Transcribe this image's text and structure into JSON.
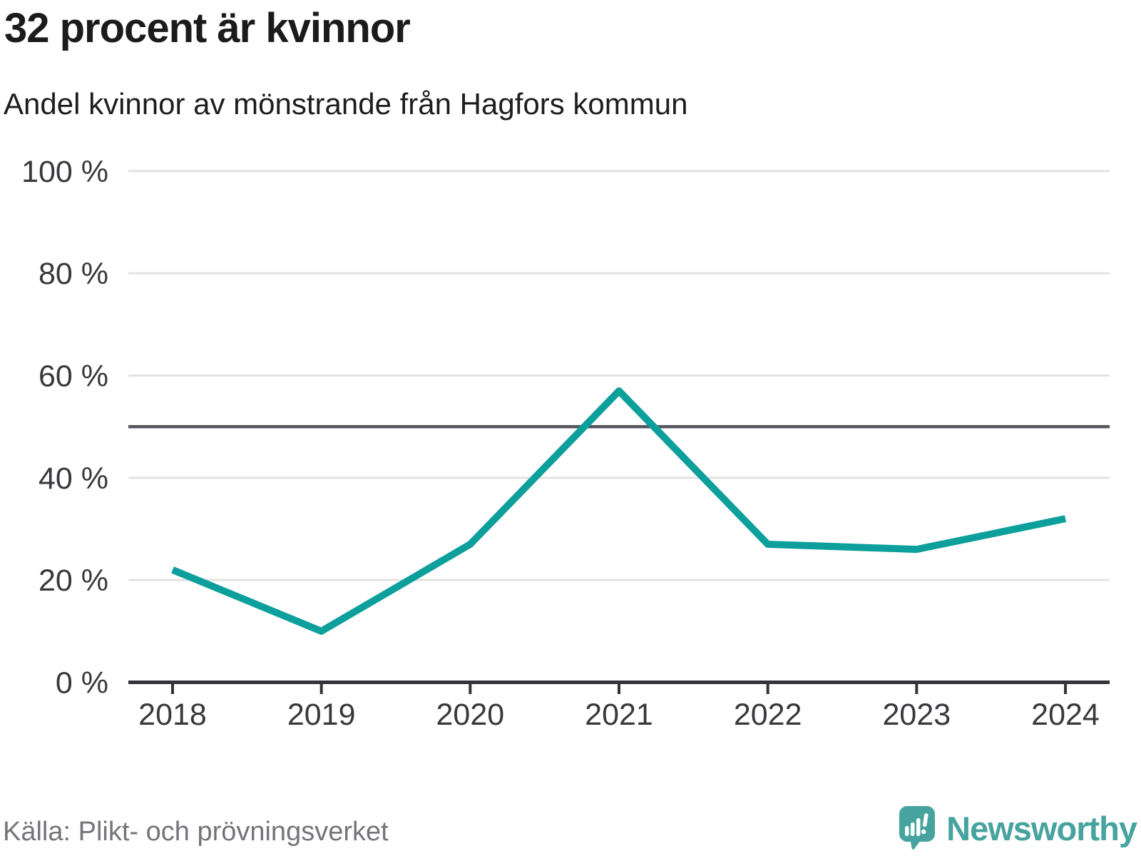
{
  "header": {
    "title": "32 procent är kvinnor",
    "subtitle": "Andel kvinnor av mönstrande från Hagfors kommun"
  },
  "chart_data": {
    "type": "line",
    "title": "32 procent är kvinnor",
    "subtitle": "Andel kvinnor av mönstrande från Hagfors kommun",
    "categories": [
      "2018",
      "2019",
      "2020",
      "2021",
      "2022",
      "2023",
      "2024"
    ],
    "series": [
      {
        "name": "Andel kvinnor av mönstrande",
        "values": [
          22,
          10,
          27,
          57,
          27,
          26,
          32
        ]
      }
    ],
    "unit": "%",
    "ylim": [
      0,
      100
    ],
    "yticks": [
      0,
      20,
      40,
      60,
      80,
      100
    ],
    "ytick_labels": [
      "0 %",
      "20 %",
      "40 %",
      "60 %",
      "80 %",
      "100 %"
    ],
    "reference_line": 50,
    "grid": true,
    "legend": "none",
    "line_color": "#0d9f9b"
  },
  "footer": {
    "source": "Källa: Plikt- och prövningsverket",
    "brand": "Newsworthy"
  },
  "colors": {
    "accent": "#0d9f9b",
    "grid": "#e2e2e2",
    "reference": "#55555e",
    "axis": "#33333a",
    "tick_text": "#38383d",
    "heading_text": "#1b1b1b",
    "muted_text": "#74747a",
    "brand": "#47a39e"
  }
}
